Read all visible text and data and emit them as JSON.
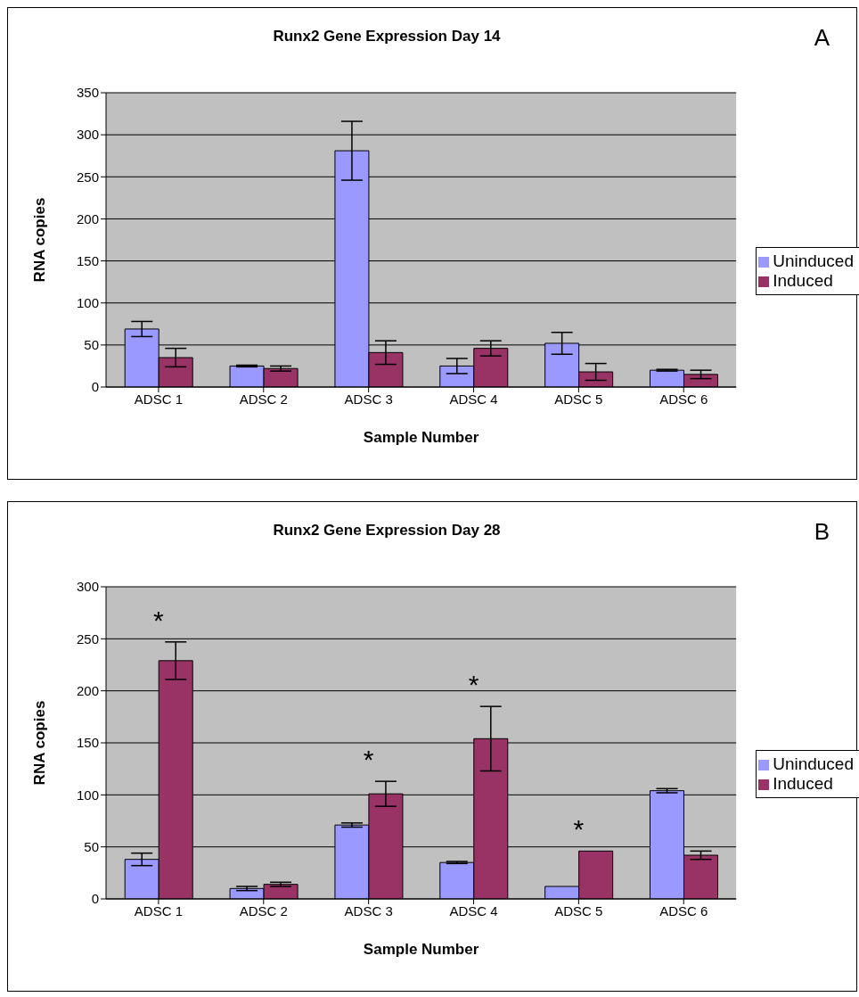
{
  "chart_data": [
    {
      "type": "bar",
      "title": "Runx2 Gene Expression Day 14",
      "xlabel": "Sample Number",
      "ylabel": "RNA copies",
      "categories": [
        "ADSC 1",
        "ADSC 2",
        "ADSC 3",
        "ADSC 4",
        "ADSC 5",
        "ADSC 6"
      ],
      "series": [
        {
          "name": "Uninduced",
          "color": "#9999ff",
          "values": [
            69,
            25,
            281,
            25,
            52,
            20
          ],
          "errors": [
            9,
            1,
            35,
            9,
            13,
            1
          ]
        },
        {
          "name": "Induced",
          "color": "#993366",
          "values": [
            35,
            22,
            41,
            46,
            18,
            15
          ],
          "errors": [
            11,
            3,
            14,
            9,
            10,
            5
          ]
        }
      ],
      "ylim": [
        0,
        350
      ],
      "yticks": [
        0,
        50,
        100,
        150,
        200,
        250,
        300,
        350
      ],
      "grid": "y",
      "legend": "right",
      "annotations": [
        "A"
      ]
    },
    {
      "type": "bar",
      "title": "Runx2 Gene Expression Day 28",
      "xlabel": "Sample Number",
      "ylabel": "RNA copies",
      "categories": [
        "ADSC 1",
        "ADSC 2",
        "ADSC 3",
        "ADSC 4",
        "ADSC 5",
        "ADSC 6"
      ],
      "series": [
        {
          "name": "Uninduced",
          "color": "#9999ff",
          "values": [
            38,
            10,
            71,
            35,
            12,
            104
          ],
          "errors": [
            6,
            2,
            2,
            1,
            null,
            2
          ]
        },
        {
          "name": "Induced",
          "color": "#993366",
          "values": [
            229,
            14,
            101,
            154,
            46,
            42
          ],
          "errors": [
            18,
            2,
            12,
            31,
            null,
            4
          ]
        }
      ],
      "ylim": [
        0,
        300
      ],
      "yticks": [
        0,
        50,
        100,
        150,
        200,
        250,
        300
      ],
      "grid": "y",
      "legend": "right",
      "annotations": [
        "B",
        {
          "text": "*",
          "x": "ADSC 1",
          "y": 229
        },
        {
          "text": "*",
          "x": "ADSC 3",
          "y": 101
        },
        {
          "text": "*",
          "x": "ADSC 4",
          "y": 154
        },
        {
          "text": "*",
          "x": "ADSC 5",
          "y": 46
        }
      ]
    }
  ]
}
